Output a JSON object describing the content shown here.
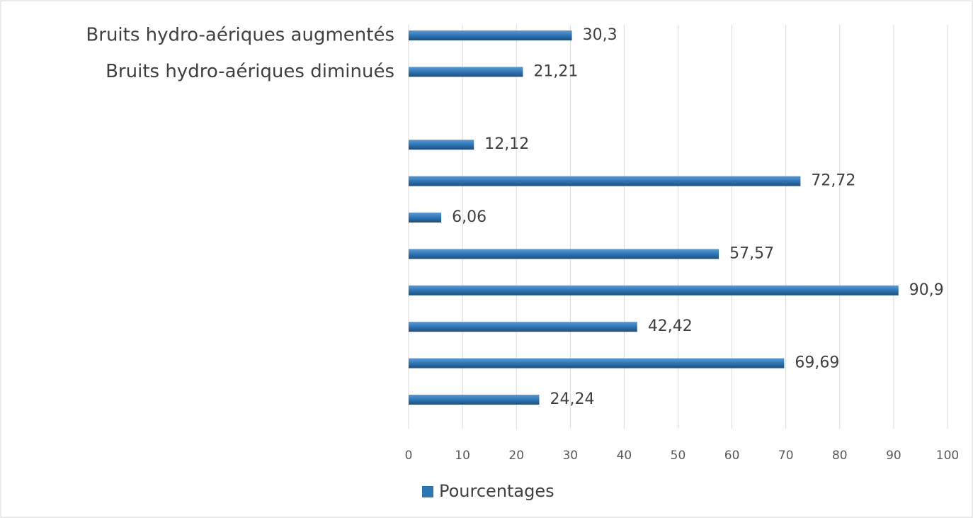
{
  "chart_data": {
    "type": "bar",
    "orientation": "horizontal",
    "categories": [
      "Bruits hydro-aériques augmentés",
      "Bruits hydro-aériques diminués",
      null,
      null,
      null,
      null,
      null,
      null,
      null,
      null,
      null
    ],
    "series": [
      {
        "name": "Pourcentages",
        "color": "#2e75b6",
        "values": [
          30.3,
          21.21,
          null,
          12.12,
          72.72,
          6.06,
          57.57,
          90.9,
          42.42,
          69.69,
          24.24
        ],
        "value_labels": [
          "30,3",
          "21,21",
          null,
          "12,12",
          "72,72",
          "6,06",
          "57,57",
          "90,9",
          "42,42",
          "69,69",
          "24,24"
        ]
      }
    ],
    "xlim": [
      0,
      100
    ],
    "xticks": [
      0,
      10,
      20,
      30,
      40,
      50,
      60,
      70,
      80,
      90,
      100
    ],
    "grid": true,
    "legend": "bottom"
  }
}
